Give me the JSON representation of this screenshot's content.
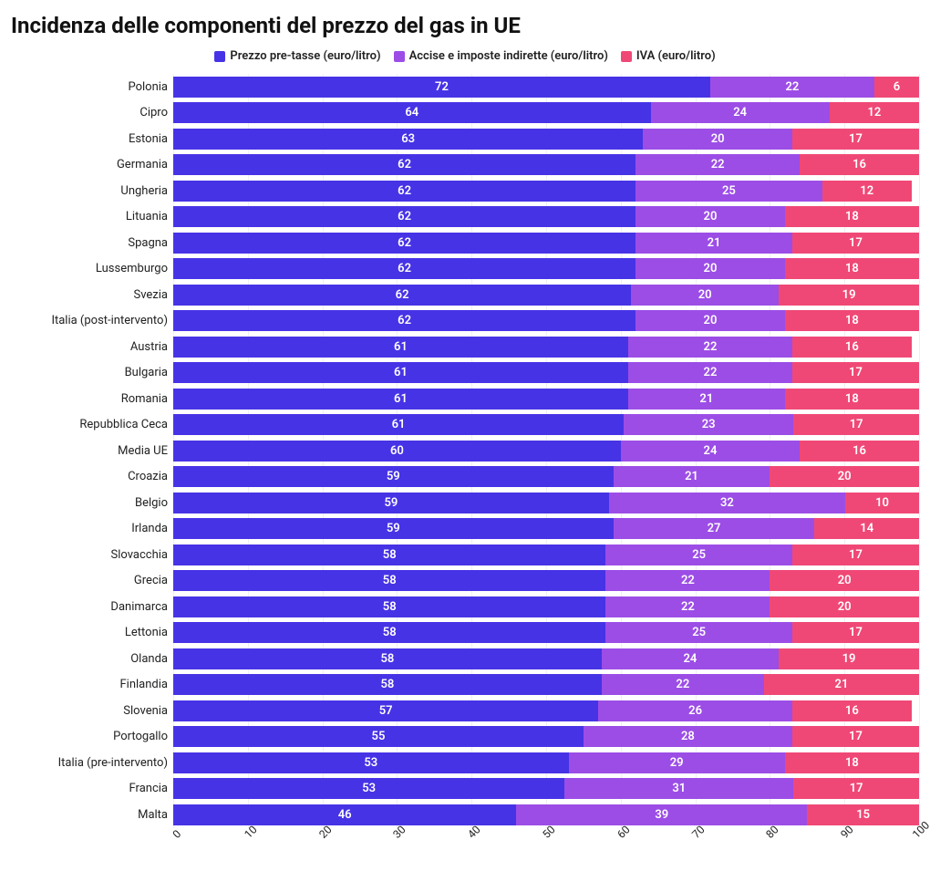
{
  "title": "Incidenza delle componenti del prezzo del gas in UE",
  "legend": [
    {
      "label": "Prezzo pre-tasse (euro/litro)",
      "color": "#4733e6"
    },
    {
      "label": "Accise e imposte indirette (euro/litro)",
      "color": "#9c4de6"
    },
    {
      "label": "IVA (euro/litro)",
      "color": "#f04876"
    }
  ],
  "xaxis": {
    "min": 0,
    "max": 100,
    "step": 10,
    "ticks": [
      0,
      10,
      20,
      30,
      40,
      50,
      60,
      70,
      80,
      90,
      100
    ]
  },
  "series_colors": [
    "#4733e6",
    "#9c4de6",
    "#f04876"
  ],
  "grid_color": "rgba(0,0,0,0.06)",
  "background_color": "#ffffff",
  "label_fontsize": 13,
  "tick_fontsize": 12,
  "rows": [
    {
      "label": "Polonia",
      "values": [
        72,
        22,
        6
      ]
    },
    {
      "label": "Cipro",
      "values": [
        64,
        24,
        12
      ]
    },
    {
      "label": "Estonia",
      "values": [
        63,
        20,
        17
      ]
    },
    {
      "label": "Germania",
      "values": [
        62,
        22,
        16
      ]
    },
    {
      "label": "Ungheria",
      "values": [
        62,
        25,
        12
      ]
    },
    {
      "label": "Lituania",
      "values": [
        62,
        20,
        18
      ]
    },
    {
      "label": "Spagna",
      "values": [
        62,
        21,
        17
      ]
    },
    {
      "label": "Lussemburgo",
      "values": [
        62,
        20,
        18
      ]
    },
    {
      "label": "Svezia",
      "values": [
        62,
        20,
        19
      ]
    },
    {
      "label": "Italia (post-intervento)",
      "values": [
        62,
        20,
        18
      ]
    },
    {
      "label": "Austria",
      "values": [
        61,
        22,
        16
      ]
    },
    {
      "label": "Bulgaria",
      "values": [
        61,
        22,
        17
      ]
    },
    {
      "label": "Romania",
      "values": [
        61,
        21,
        18
      ]
    },
    {
      "label": "Repubblica Ceca",
      "values": [
        61,
        23,
        17
      ]
    },
    {
      "label": "Media UE",
      "values": [
        60,
        24,
        16
      ]
    },
    {
      "label": "Croazia",
      "values": [
        59,
        21,
        20
      ]
    },
    {
      "label": "Belgio",
      "values": [
        59,
        32,
        10
      ]
    },
    {
      "label": "Irlanda",
      "values": [
        59,
        27,
        14
      ]
    },
    {
      "label": "Slovacchia",
      "values": [
        58,
        25,
        17
      ]
    },
    {
      "label": "Grecia",
      "values": [
        58,
        22,
        20
      ]
    },
    {
      "label": "Danimarca",
      "values": [
        58,
        22,
        20
      ]
    },
    {
      "label": "Lettonia",
      "values": [
        58,
        25,
        17
      ]
    },
    {
      "label": "Olanda",
      "values": [
        58,
        24,
        19
      ]
    },
    {
      "label": "Finlandia",
      "values": [
        58,
        22,
        21
      ]
    },
    {
      "label": "Slovenia",
      "values": [
        57,
        26,
        16
      ]
    },
    {
      "label": "Portogallo",
      "values": [
        55,
        28,
        17
      ]
    },
    {
      "label": "Italia (pre-intervento)",
      "values": [
        53,
        29,
        18
      ]
    },
    {
      "label": "Francia",
      "values": [
        53,
        31,
        17
      ]
    },
    {
      "label": "Malta",
      "values": [
        46,
        39,
        15
      ]
    }
  ]
}
